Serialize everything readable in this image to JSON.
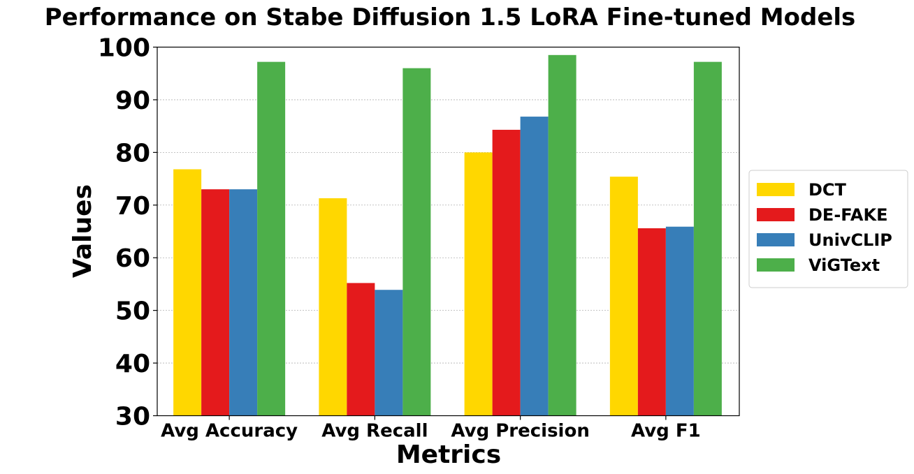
{
  "chart_data": {
    "type": "bar",
    "title": "Performance on Stabe Diffusion 1.5 LoRA Fine-tuned Models",
    "xlabel": "Metrics",
    "ylabel": "Values",
    "ylim": [
      30,
      100
    ],
    "yticks": [
      30,
      40,
      50,
      60,
      70,
      80,
      90,
      100
    ],
    "grid": true,
    "legend_position": "center-right",
    "categories": [
      "Avg Accuracy",
      "Avg Recall",
      "Avg Precision",
      "Avg F1"
    ],
    "series": [
      {
        "name": "DCT",
        "color": "#FFD700",
        "values": [
          76.8,
          71.3,
          80.0,
          75.4
        ]
      },
      {
        "name": "DE-FAKE",
        "color": "#E41A1C",
        "values": [
          73.0,
          55.2,
          84.3,
          65.6
        ]
      },
      {
        "name": "UnivCLIP",
        "color": "#377EB8",
        "values": [
          73.0,
          53.9,
          86.8,
          65.9
        ]
      },
      {
        "name": "ViGText",
        "color": "#4DAF4A",
        "values": [
          97.2,
          96.0,
          98.5,
          97.2
        ]
      }
    ]
  }
}
